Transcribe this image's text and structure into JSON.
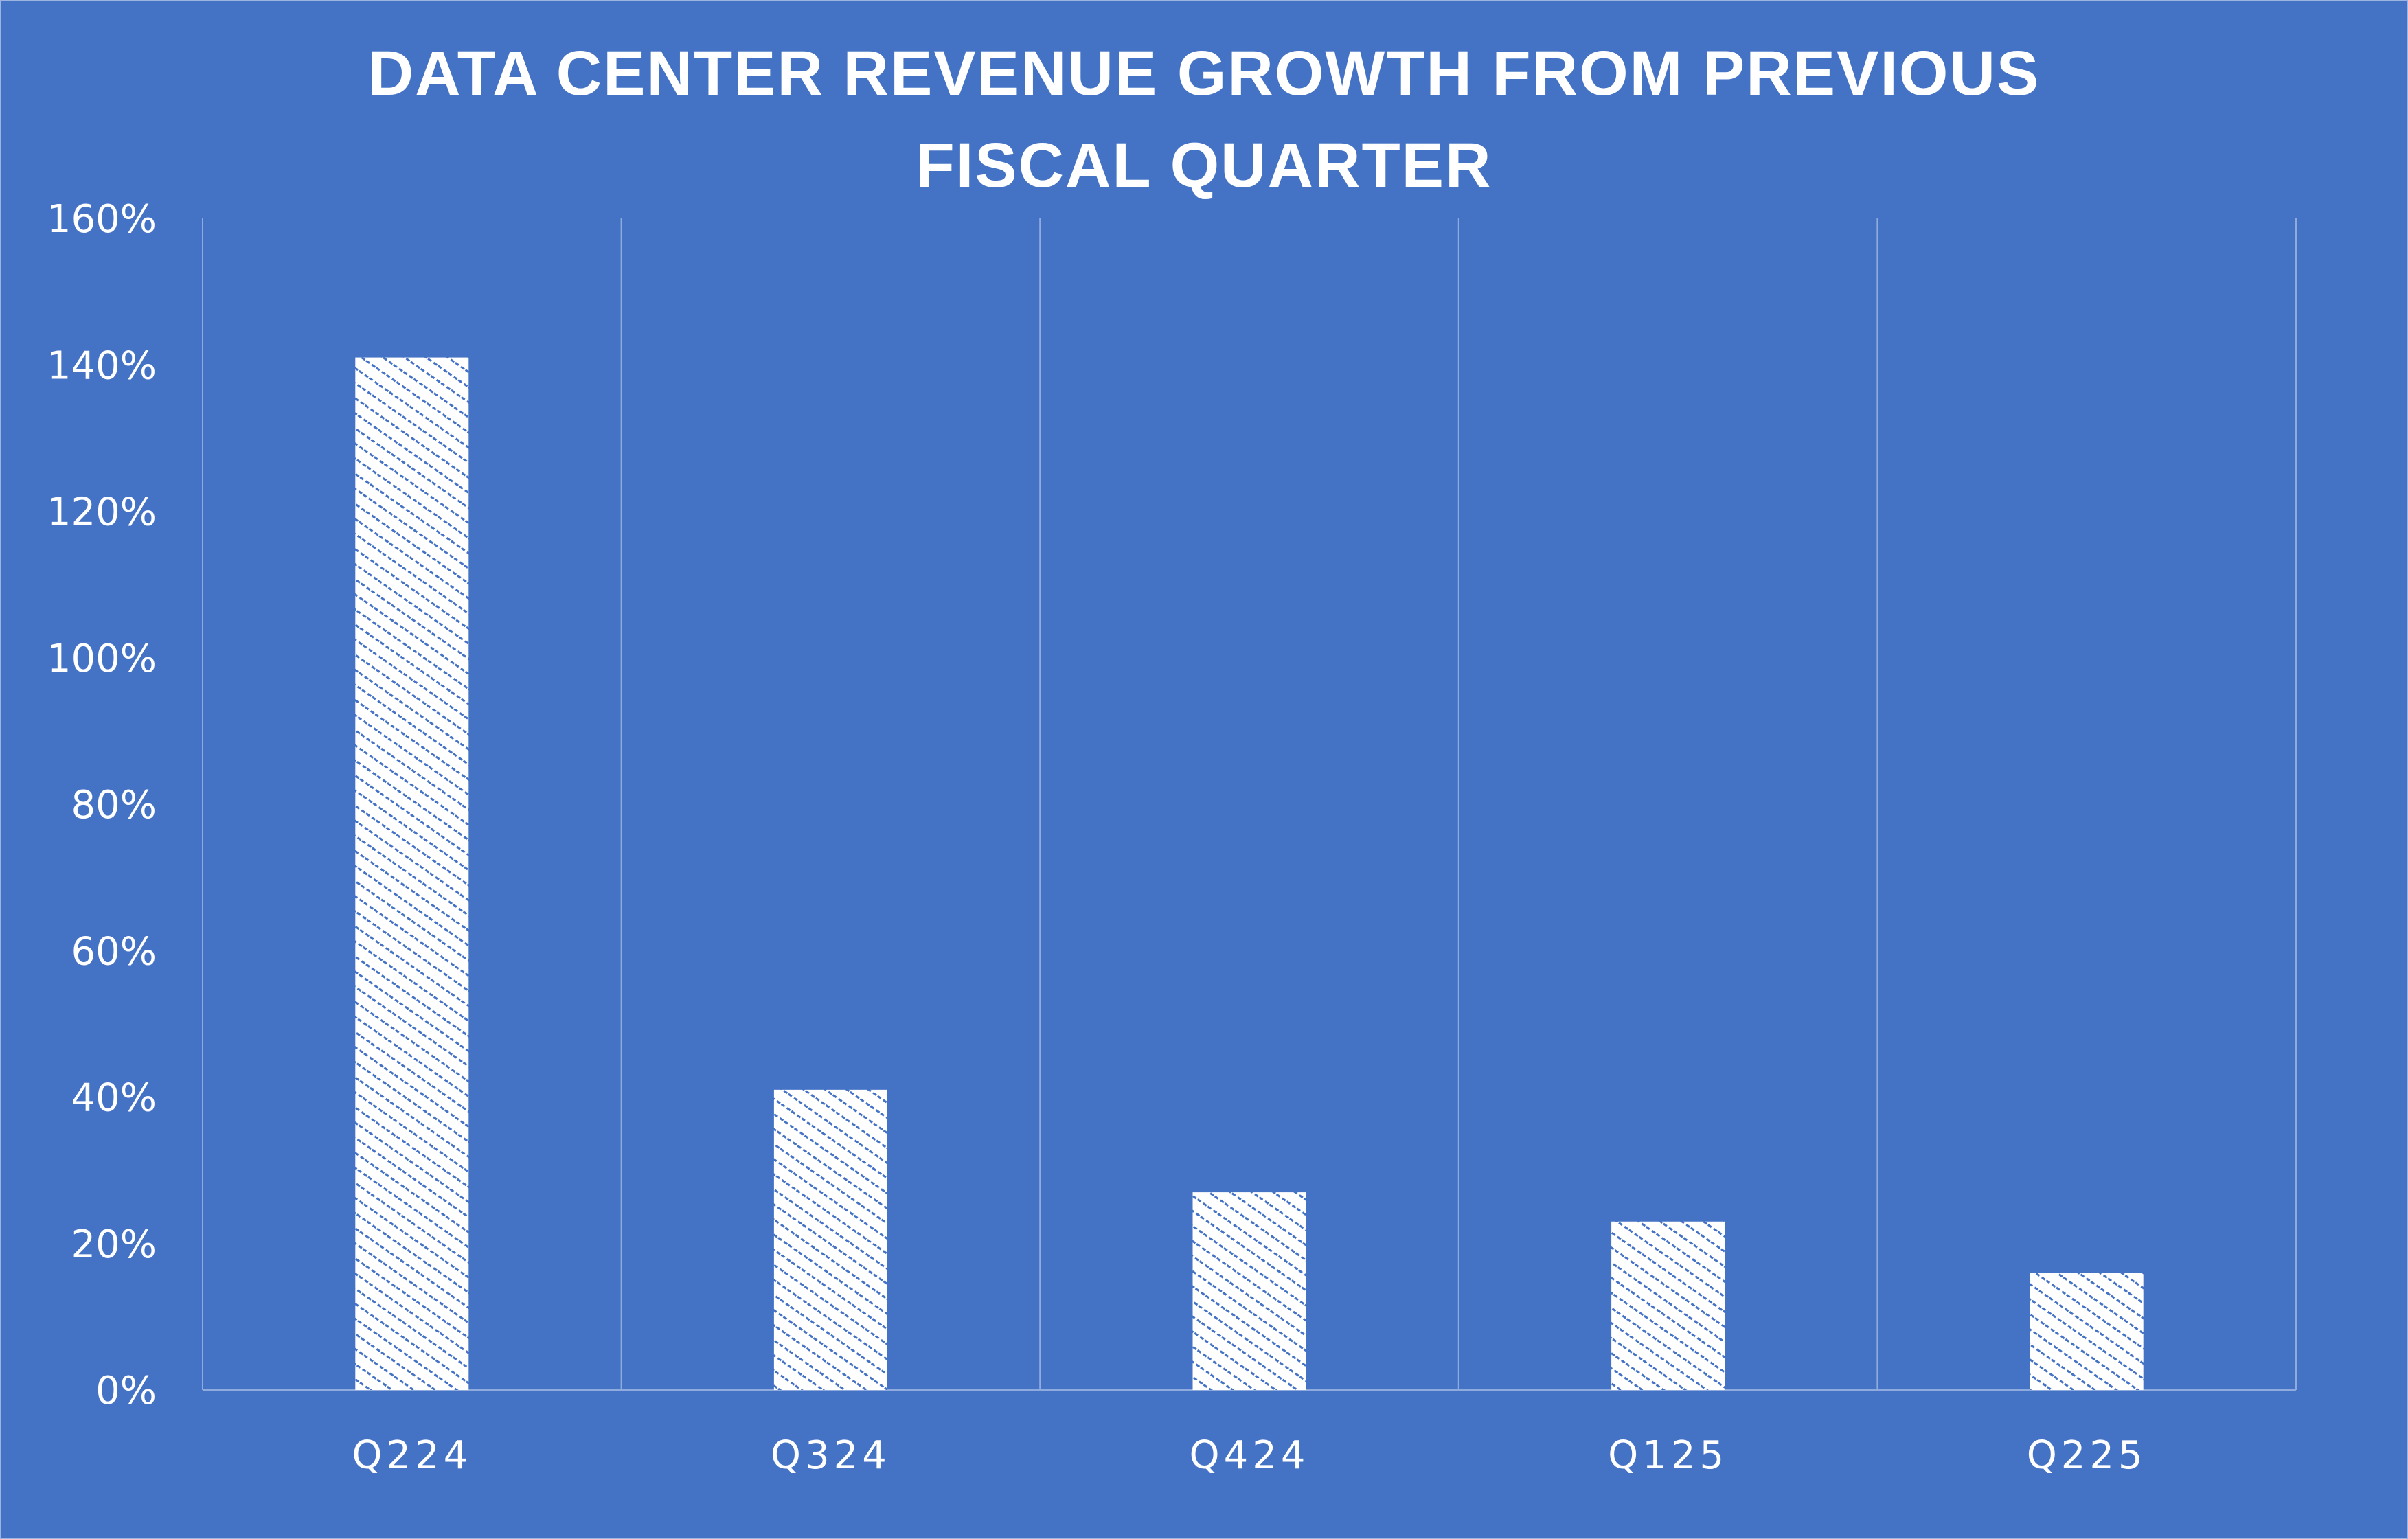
{
  "chart_data": {
    "type": "bar",
    "title_lines": [
      "DATA CENTER REVENUE GROWTH FROM PREVIOUS",
      "FISCAL  QUARTER"
    ],
    "categories": [
      "Q224",
      "Q324",
      "Q424",
      "Q125",
      "Q225"
    ],
    "values": [
      141,
      41,
      27,
      23,
      16
    ],
    "value_unit": "%",
    "xlabel": "",
    "ylabel": "",
    "ylim": [
      0,
      160
    ],
    "yticks": [
      0,
      20,
      40,
      60,
      80,
      100,
      120,
      140,
      160
    ],
    "ytick_labels": [
      "0%",
      "20%",
      "40%",
      "60%",
      "80%",
      "100%",
      "120%",
      "140%",
      "160%"
    ],
    "grid": "vertical category separators only",
    "legend": "none",
    "colors": {
      "background": "#4472C4",
      "bar_fill": "#FFFFFF",
      "bar_hatch": "#4472C4",
      "gridline": "#8FAADC"
    },
    "bar_pattern": "diagonal dashed hatch"
  }
}
